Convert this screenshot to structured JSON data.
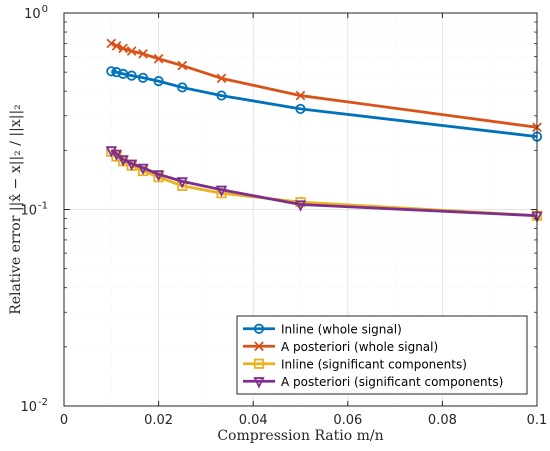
{
  "chart_data": {
    "type": "line",
    "xlabel": "Compression Ratio m/n",
    "ylabel": "Relative error ||x̂ − x||₂ / ||x||₂",
    "xlim": [
      0,
      0.1
    ],
    "ylim": [
      0.01,
      1
    ],
    "yscale": "log",
    "grid": true,
    "legend_position": "bottom-right",
    "x_ticks": [
      0,
      0.02,
      0.04,
      0.06,
      0.08,
      0.1
    ],
    "x_tick_labels": [
      "0",
      "0.02",
      "0.04",
      "0.06",
      "0.08",
      "0.1"
    ],
    "y_ticks": [
      0.01,
      0.1,
      1
    ],
    "y_tick_bases": [
      "10",
      "10",
      "10"
    ],
    "y_tick_exps": [
      "-2",
      "-1",
      "0"
    ],
    "series": [
      {
        "name": "Inline (whole signal)",
        "color": "#0072BD",
        "marker": "circle",
        "x": [
          0.01,
          0.0111,
          0.0125,
          0.0143,
          0.0167,
          0.02,
          0.025,
          0.0333,
          0.05,
          0.1
        ],
        "y": [
          0.505,
          0.5,
          0.49,
          0.48,
          0.468,
          0.45,
          0.418,
          0.38,
          0.325,
          0.235
        ]
      },
      {
        "name": "A posteriori (whole signal)",
        "color": "#D95319",
        "marker": "x",
        "x": [
          0.01,
          0.0111,
          0.0125,
          0.0143,
          0.0167,
          0.02,
          0.025,
          0.0333,
          0.05,
          0.1
        ],
        "y": [
          0.7,
          0.68,
          0.66,
          0.64,
          0.62,
          0.585,
          0.54,
          0.465,
          0.38,
          0.262
        ]
      },
      {
        "name": "Inline (significant components)",
        "color": "#EDB120",
        "marker": "square",
        "x": [
          0.01,
          0.0111,
          0.0125,
          0.0143,
          0.0167,
          0.02,
          0.025,
          0.0333,
          0.05,
          0.1
        ],
        "y": [
          0.197,
          0.186,
          0.176,
          0.167,
          0.157,
          0.146,
          0.132,
          0.121,
          0.109,
          0.093
        ]
      },
      {
        "name": "A posteriori (significant components)",
        "color": "#7E2F8E",
        "marker": "triangle-down",
        "x": [
          0.01,
          0.0111,
          0.0125,
          0.0143,
          0.0167,
          0.02,
          0.025,
          0.0333,
          0.05,
          0.1
        ],
        "y": [
          0.2,
          0.192,
          0.18,
          0.171,
          0.163,
          0.151,
          0.139,
          0.126,
          0.106,
          0.093
        ]
      }
    ]
  }
}
